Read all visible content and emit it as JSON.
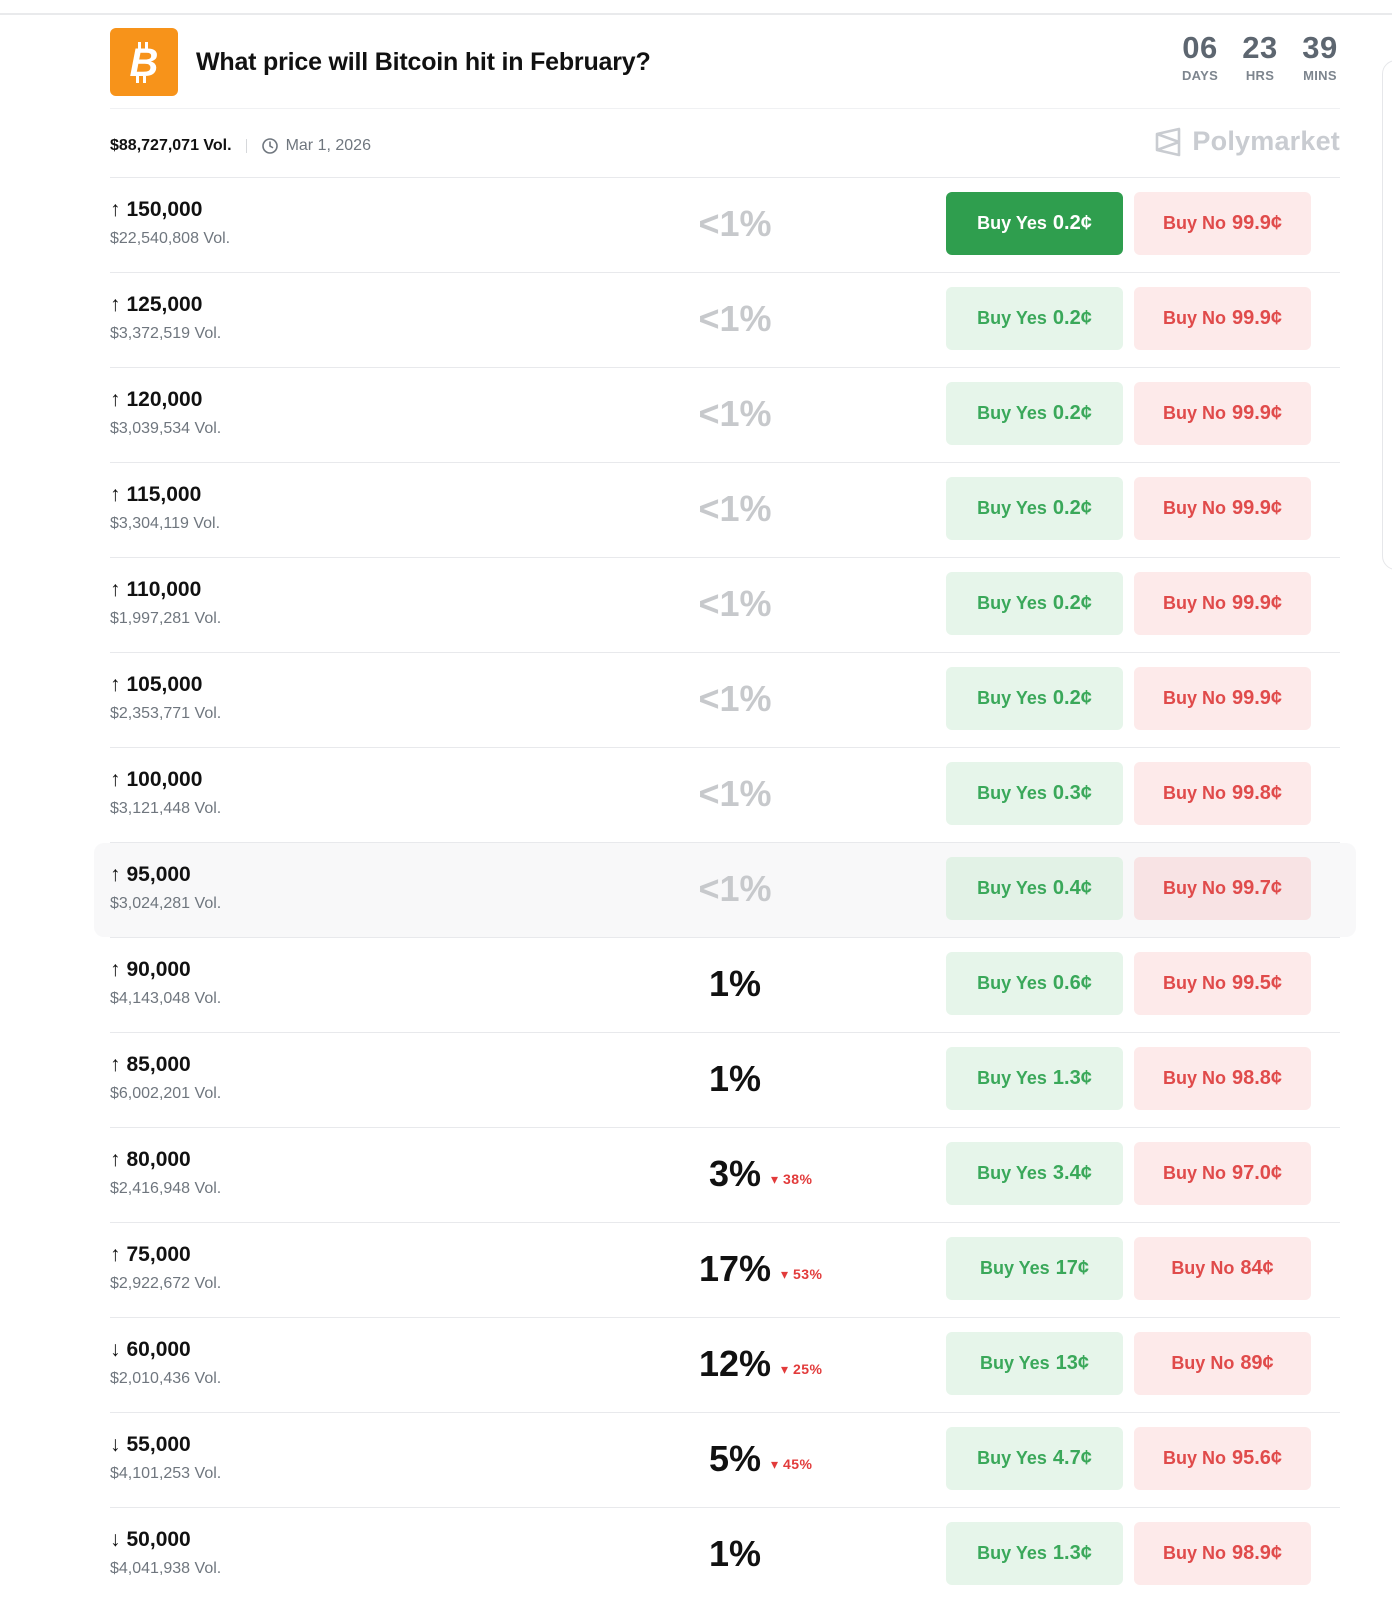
{
  "header": {
    "title": "What price will Bitcoin hit in February?",
    "countdown": [
      {
        "value": "06",
        "unit": "DAYS"
      },
      {
        "value": "23",
        "unit": "HRS"
      },
      {
        "value": "39",
        "unit": "MINS"
      }
    ]
  },
  "meta": {
    "total_volume": "$88,727,071 Vol.",
    "end_date": "Mar 1, 2026",
    "brand": "Polymarket"
  },
  "colors": {
    "bitcoin_orange": "#f7931a",
    "yes_green": "#3aa85a",
    "yes_active": "#2f9e4e",
    "no_red": "#e04b4b",
    "change_red": "#e23b3b"
  },
  "markets": [
    {
      "direction": "up",
      "arrow": "↑",
      "strike": "150,000",
      "volume": "$22,540,808 Vol.",
      "chance": "<1%",
      "change": "",
      "yes_label": "Buy Yes",
      "yes_price": "0.2¢",
      "no_label": "Buy No",
      "no_price": "99.9¢",
      "active": true,
      "highlight": false
    },
    {
      "direction": "up",
      "arrow": "↑",
      "strike": "125,000",
      "volume": "$3,372,519 Vol.",
      "chance": "<1%",
      "change": "",
      "yes_label": "Buy Yes",
      "yes_price": "0.2¢",
      "no_label": "Buy No",
      "no_price": "99.9¢",
      "active": false,
      "highlight": false
    },
    {
      "direction": "up",
      "arrow": "↑",
      "strike": "120,000",
      "volume": "$3,039,534 Vol.",
      "chance": "<1%",
      "change": "",
      "yes_label": "Buy Yes",
      "yes_price": "0.2¢",
      "no_label": "Buy No",
      "no_price": "99.9¢",
      "active": false,
      "highlight": false
    },
    {
      "direction": "up",
      "arrow": "↑",
      "strike": "115,000",
      "volume": "$3,304,119 Vol.",
      "chance": "<1%",
      "change": "",
      "yes_label": "Buy Yes",
      "yes_price": "0.2¢",
      "no_label": "Buy No",
      "no_price": "99.9¢",
      "active": false,
      "highlight": false
    },
    {
      "direction": "up",
      "arrow": "↑",
      "strike": "110,000",
      "volume": "$1,997,281 Vol.",
      "chance": "<1%",
      "change": "",
      "yes_label": "Buy Yes",
      "yes_price": "0.2¢",
      "no_label": "Buy No",
      "no_price": "99.9¢",
      "active": false,
      "highlight": false
    },
    {
      "direction": "up",
      "arrow": "↑",
      "strike": "105,000",
      "volume": "$2,353,771 Vol.",
      "chance": "<1%",
      "change": "",
      "yes_label": "Buy Yes",
      "yes_price": "0.2¢",
      "no_label": "Buy No",
      "no_price": "99.9¢",
      "active": false,
      "highlight": false
    },
    {
      "direction": "up",
      "arrow": "↑",
      "strike": "100,000",
      "volume": "$3,121,448 Vol.",
      "chance": "<1%",
      "change": "",
      "yes_label": "Buy Yes",
      "yes_price": "0.3¢",
      "no_label": "Buy No",
      "no_price": "99.8¢",
      "active": false,
      "highlight": false
    },
    {
      "direction": "up",
      "arrow": "↑",
      "strike": "95,000",
      "volume": "$3,024,281 Vol.",
      "chance": "<1%",
      "change": "",
      "yes_label": "Buy Yes",
      "yes_price": "0.4¢",
      "no_label": "Buy No",
      "no_price": "99.7¢",
      "active": false,
      "highlight": true
    },
    {
      "direction": "up",
      "arrow": "↑",
      "strike": "90,000",
      "volume": "$4,143,048 Vol.",
      "chance": "1%",
      "change": "",
      "yes_label": "Buy Yes",
      "yes_price": "0.6¢",
      "no_label": "Buy No",
      "no_price": "99.5¢",
      "active": false,
      "highlight": false
    },
    {
      "direction": "up",
      "arrow": "↑",
      "strike": "85,000",
      "volume": "$6,002,201 Vol.",
      "chance": "1%",
      "change": "",
      "yes_label": "Buy Yes",
      "yes_price": "1.3¢",
      "no_label": "Buy No",
      "no_price": "98.8¢",
      "active": false,
      "highlight": false
    },
    {
      "direction": "up",
      "arrow": "↑",
      "strike": "80,000",
      "volume": "$2,416,948 Vol.",
      "chance": "3%",
      "change": "38%",
      "yes_label": "Buy Yes",
      "yes_price": "3.4¢",
      "no_label": "Buy No",
      "no_price": "97.0¢",
      "active": false,
      "highlight": false
    },
    {
      "direction": "up",
      "arrow": "↑",
      "strike": "75,000",
      "volume": "$2,922,672 Vol.",
      "chance": "17%",
      "change": "53%",
      "yes_label": "Buy Yes",
      "yes_price": "17¢",
      "no_label": "Buy No",
      "no_price": "84¢",
      "active": false,
      "highlight": false
    },
    {
      "direction": "down",
      "arrow": "↓",
      "strike": "60,000",
      "volume": "$2,010,436 Vol.",
      "chance": "12%",
      "change": "25%",
      "yes_label": "Buy Yes",
      "yes_price": "13¢",
      "no_label": "Buy No",
      "no_price": "89¢",
      "active": false,
      "highlight": false
    },
    {
      "direction": "down",
      "arrow": "↓",
      "strike": "55,000",
      "volume": "$4,101,253 Vol.",
      "chance": "5%",
      "change": "45%",
      "yes_label": "Buy Yes",
      "yes_price": "4.7¢",
      "no_label": "Buy No",
      "no_price": "95.6¢",
      "active": false,
      "highlight": false
    },
    {
      "direction": "down",
      "arrow": "↓",
      "strike": "50,000",
      "volume": "$4,041,938 Vol.",
      "chance": "1%",
      "change": "",
      "yes_label": "Buy Yes",
      "yes_price": "1.3¢",
      "no_label": "Buy No",
      "no_price": "98.9¢",
      "active": false,
      "highlight": false
    }
  ]
}
